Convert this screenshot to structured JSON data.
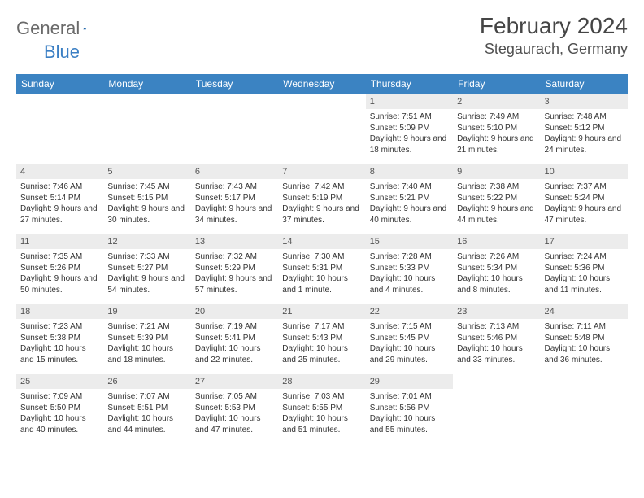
{
  "logo": {
    "word1": "General",
    "word2": "Blue"
  },
  "title": "February 2024",
  "location": "Stegaurach, Germany",
  "colors": {
    "header_bg": "#3b83c2",
    "header_text": "#ffffff",
    "daynum_bg": "#ececec",
    "row_border": "#3b83c2",
    "logo_gray": "#6a6a6a",
    "logo_blue": "#3b7fc4"
  },
  "weekdays": [
    "Sunday",
    "Monday",
    "Tuesday",
    "Wednesday",
    "Thursday",
    "Friday",
    "Saturday"
  ],
  "leading_blanks": 4,
  "days": [
    {
      "n": 1,
      "sunrise": "7:51 AM",
      "sunset": "5:09 PM",
      "daylight": "9 hours and 18 minutes."
    },
    {
      "n": 2,
      "sunrise": "7:49 AM",
      "sunset": "5:10 PM",
      "daylight": "9 hours and 21 minutes."
    },
    {
      "n": 3,
      "sunrise": "7:48 AM",
      "sunset": "5:12 PM",
      "daylight": "9 hours and 24 minutes."
    },
    {
      "n": 4,
      "sunrise": "7:46 AM",
      "sunset": "5:14 PM",
      "daylight": "9 hours and 27 minutes."
    },
    {
      "n": 5,
      "sunrise": "7:45 AM",
      "sunset": "5:15 PM",
      "daylight": "9 hours and 30 minutes."
    },
    {
      "n": 6,
      "sunrise": "7:43 AM",
      "sunset": "5:17 PM",
      "daylight": "9 hours and 34 minutes."
    },
    {
      "n": 7,
      "sunrise": "7:42 AM",
      "sunset": "5:19 PM",
      "daylight": "9 hours and 37 minutes."
    },
    {
      "n": 8,
      "sunrise": "7:40 AM",
      "sunset": "5:21 PM",
      "daylight": "9 hours and 40 minutes."
    },
    {
      "n": 9,
      "sunrise": "7:38 AM",
      "sunset": "5:22 PM",
      "daylight": "9 hours and 44 minutes."
    },
    {
      "n": 10,
      "sunrise": "7:37 AM",
      "sunset": "5:24 PM",
      "daylight": "9 hours and 47 minutes."
    },
    {
      "n": 11,
      "sunrise": "7:35 AM",
      "sunset": "5:26 PM",
      "daylight": "9 hours and 50 minutes."
    },
    {
      "n": 12,
      "sunrise": "7:33 AM",
      "sunset": "5:27 PM",
      "daylight": "9 hours and 54 minutes."
    },
    {
      "n": 13,
      "sunrise": "7:32 AM",
      "sunset": "5:29 PM",
      "daylight": "9 hours and 57 minutes."
    },
    {
      "n": 14,
      "sunrise": "7:30 AM",
      "sunset": "5:31 PM",
      "daylight": "10 hours and 1 minute."
    },
    {
      "n": 15,
      "sunrise": "7:28 AM",
      "sunset": "5:33 PM",
      "daylight": "10 hours and 4 minutes."
    },
    {
      "n": 16,
      "sunrise": "7:26 AM",
      "sunset": "5:34 PM",
      "daylight": "10 hours and 8 minutes."
    },
    {
      "n": 17,
      "sunrise": "7:24 AM",
      "sunset": "5:36 PM",
      "daylight": "10 hours and 11 minutes."
    },
    {
      "n": 18,
      "sunrise": "7:23 AM",
      "sunset": "5:38 PM",
      "daylight": "10 hours and 15 minutes."
    },
    {
      "n": 19,
      "sunrise": "7:21 AM",
      "sunset": "5:39 PM",
      "daylight": "10 hours and 18 minutes."
    },
    {
      "n": 20,
      "sunrise": "7:19 AM",
      "sunset": "5:41 PM",
      "daylight": "10 hours and 22 minutes."
    },
    {
      "n": 21,
      "sunrise": "7:17 AM",
      "sunset": "5:43 PM",
      "daylight": "10 hours and 25 minutes."
    },
    {
      "n": 22,
      "sunrise": "7:15 AM",
      "sunset": "5:45 PM",
      "daylight": "10 hours and 29 minutes."
    },
    {
      "n": 23,
      "sunrise": "7:13 AM",
      "sunset": "5:46 PM",
      "daylight": "10 hours and 33 minutes."
    },
    {
      "n": 24,
      "sunrise": "7:11 AM",
      "sunset": "5:48 PM",
      "daylight": "10 hours and 36 minutes."
    },
    {
      "n": 25,
      "sunrise": "7:09 AM",
      "sunset": "5:50 PM",
      "daylight": "10 hours and 40 minutes."
    },
    {
      "n": 26,
      "sunrise": "7:07 AM",
      "sunset": "5:51 PM",
      "daylight": "10 hours and 44 minutes."
    },
    {
      "n": 27,
      "sunrise": "7:05 AM",
      "sunset": "5:53 PM",
      "daylight": "10 hours and 47 minutes."
    },
    {
      "n": 28,
      "sunrise": "7:03 AM",
      "sunset": "5:55 PM",
      "daylight": "10 hours and 51 minutes."
    },
    {
      "n": 29,
      "sunrise": "7:01 AM",
      "sunset": "5:56 PM",
      "daylight": "10 hours and 55 minutes."
    }
  ],
  "labels": {
    "sunrise": "Sunrise:",
    "sunset": "Sunset:",
    "daylight": "Daylight:"
  }
}
